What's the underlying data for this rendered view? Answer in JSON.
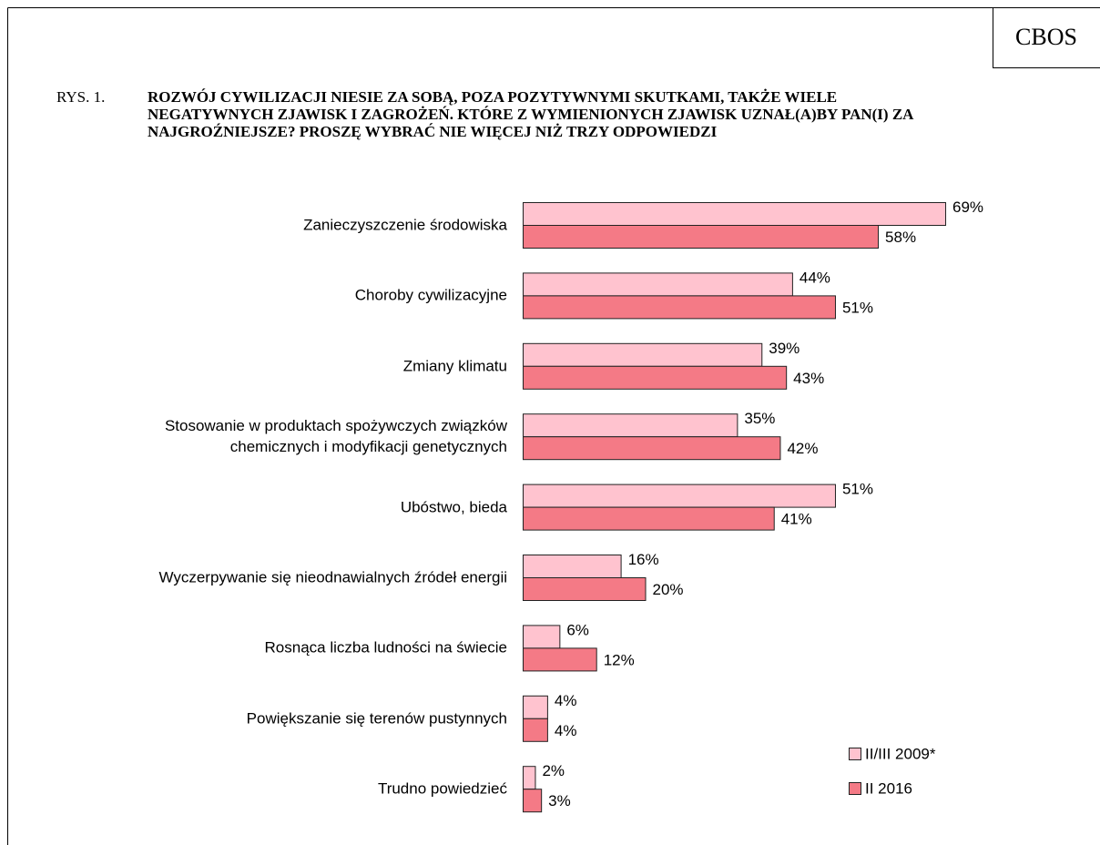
{
  "brand": "CBOS",
  "figure_label": "RYS. 1.",
  "chart_data": {
    "type": "barh",
    "title": "ROZWÓJ CYWILIZACJI NIESIE ZA SOBĄ, POZA POZYTYWNYMI SKUTKAMI, TAKŻE WIELE NEGATYWNYCH ZJAWISK I ZAGROŻEŃ. KTÓRE Z WYMIENIONYCH ZJAWISK UZNAŁ(A)BY PAN(I) ZA NAJGROŹNIEJSZE? PROSZĘ WYBRAĆ NIE WIĘCEJ NIŻ TRZY ODPOWIEDZI",
    "categories": [
      "Zanieczyszczenie środowiska",
      "Choroby cywilizacyjne",
      "Zmiany klimatu",
      "Stosowanie w produktach spożywczych związków chemicznych i modyfikacji genetycznych",
      "Ubóstwo, bieda",
      "Wyczerpywanie się nieodnawialnych źródeł energii",
      "Rosnąca liczba ludności na świecie",
      "Powiększanie się terenów pustynnych",
      "Trudno powiedzieć"
    ],
    "series": [
      {
        "name": "II/III 2009*",
        "color": "#ffc3cf",
        "values": [
          69,
          44,
          39,
          35,
          51,
          16,
          6,
          4,
          2
        ],
        "value_labels": [
          "69%",
          "44%",
          "39%",
          "35%",
          "51%",
          "16%",
          "6%",
          "4%",
          "2%"
        ]
      },
      {
        "name": "II 2016",
        "color": "#f47a86",
        "values": [
          58,
          51,
          43,
          42,
          41,
          20,
          12,
          4,
          3
        ],
        "value_labels": [
          "58%",
          "51%",
          "43%",
          "42%",
          "41%",
          "20%",
          "12%",
          "4%",
          "3%"
        ]
      }
    ],
    "legend": "bottom-right"
  }
}
